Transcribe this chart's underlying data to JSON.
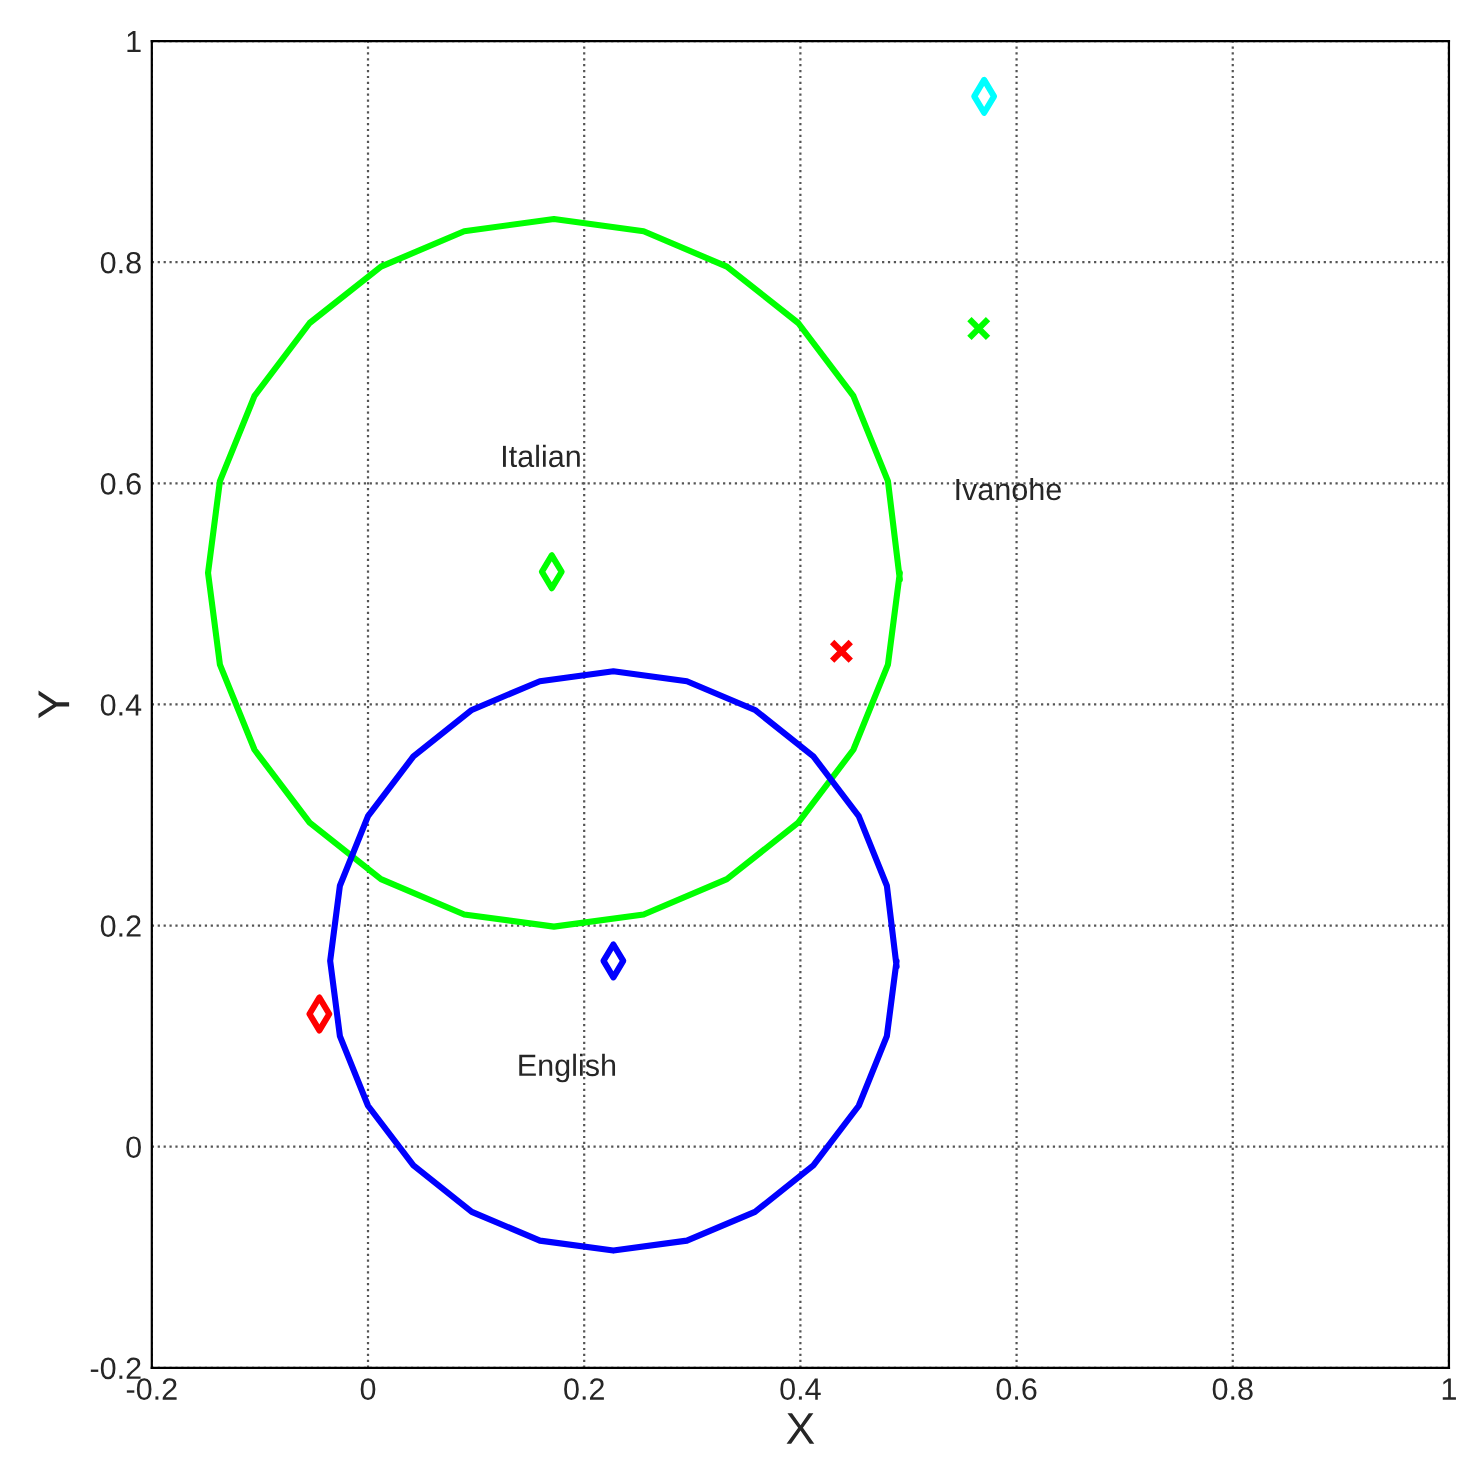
{
  "chart_data": {
    "type": "scatter",
    "xlabel": "X",
    "ylabel": "Y",
    "xlim": [
      -0.2,
      1
    ],
    "ylim": [
      -0.2,
      1
    ],
    "xticks": [
      -0.2,
      0,
      0.2,
      0.4,
      0.6,
      0.8,
      1
    ],
    "yticks": [
      -0.2,
      0,
      0.2,
      0.4,
      0.6,
      0.8,
      1
    ],
    "grid": true,
    "annotations": [
      "Italian",
      "Ivanohe",
      "English"
    ],
    "series": [
      {
        "type": "line",
        "color": "#00ff00",
        "marker": "none",
        "x": [
          0.492,
          0.481,
          0.449,
          0.398,
          0.332,
          0.255,
          0.172,
          0.089,
          0.012,
          -0.054,
          -0.105,
          -0.137,
          -0.148,
          -0.137,
          -0.105,
          -0.054,
          0.012,
          0.089,
          0.172,
          0.255,
          0.332,
          0.398,
          0.449,
          0.481,
          0.492
        ],
        "values": [
          0.513,
          0.602,
          0.679,
          0.745,
          0.796,
          0.828,
          0.839,
          0.828,
          0.796,
          0.745,
          0.679,
          0.602,
          0.519,
          0.436,
          0.359,
          0.293,
          0.242,
          0.21,
          0.199,
          0.21,
          0.242,
          0.293,
          0.359,
          0.436,
          0.519
        ]
      },
      {
        "type": "line",
        "color": "#0000ff",
        "marker": "none",
        "x": [
          0.489,
          0.48,
          0.454,
          0.412,
          0.358,
          0.295,
          0.227,
          0.159,
          0.096,
          0.042,
          0.0,
          -0.026,
          -0.035,
          -0.026,
          0.0,
          0.042,
          0.096,
          0.159,
          0.227,
          0.295,
          0.358,
          0.412,
          0.454,
          0.48,
          0.489
        ],
        "values": [
          0.163,
          0.236,
          0.299,
          0.353,
          0.395,
          0.421,
          0.43,
          0.421,
          0.395,
          0.353,
          0.299,
          0.236,
          0.168,
          0.1,
          0.037,
          -0.017,
          -0.059,
          -0.085,
          -0.094,
          -0.085,
          -0.059,
          -0.017,
          0.037,
          0.1,
          0.168
        ]
      },
      {
        "color": "#00ff00",
        "marker": "diamond",
        "x": [
          0.17
        ],
        "values": [
          0.52
        ]
      },
      {
        "color": "#0000ff",
        "marker": "diamond",
        "x": [
          0.227
        ],
        "values": [
          0.168
        ]
      },
      {
        "color": "#ff0000",
        "marker": "diamond",
        "x": [
          -0.045
        ],
        "values": [
          0.12
        ]
      },
      {
        "color": "#00ffff",
        "marker": "diamond",
        "x": [
          0.57
        ],
        "values": [
          0.95
        ]
      },
      {
        "color": "#00ff00",
        "marker": "cross",
        "x": [
          0.565
        ],
        "values": [
          0.74
        ]
      },
      {
        "color": "#ff0000",
        "marker": "cross",
        "x": [
          0.438
        ],
        "values": [
          0.448
        ]
      }
    ]
  }
}
